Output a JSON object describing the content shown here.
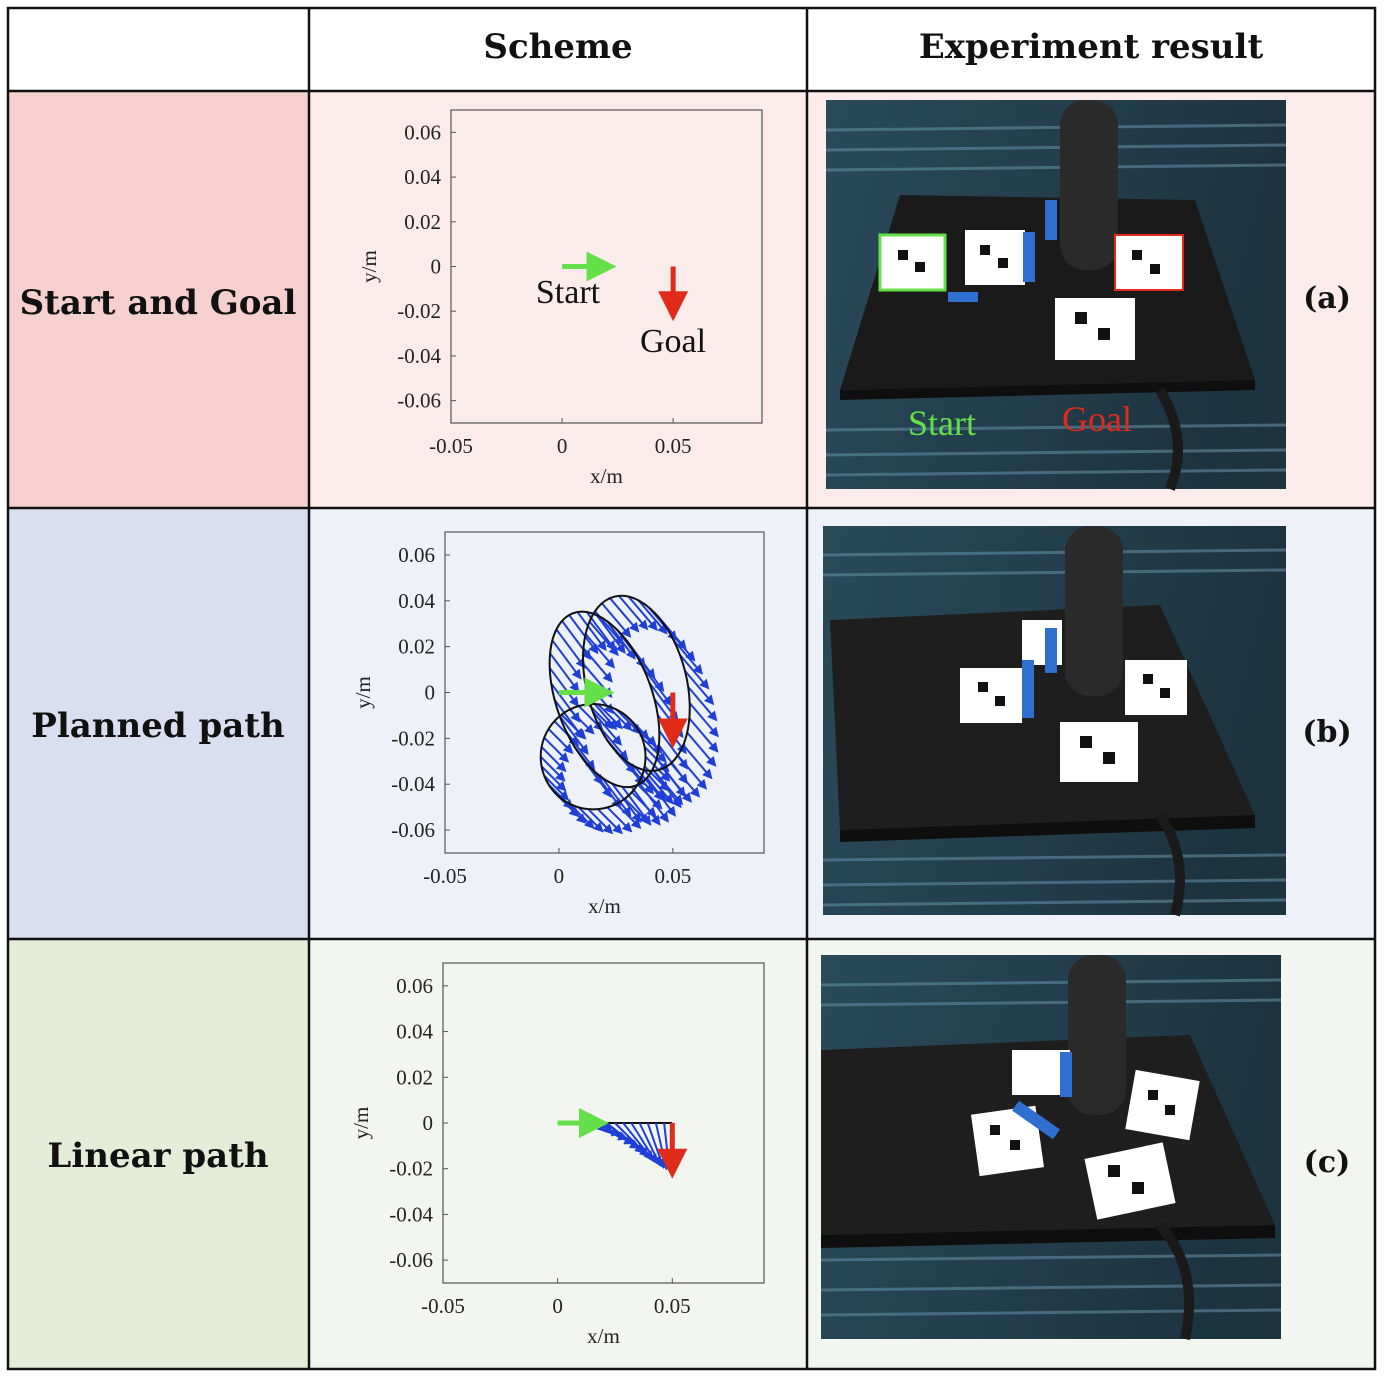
{
  "header": {
    "col_scheme": "Scheme",
    "col_result": "Experiment result"
  },
  "rows": [
    {
      "label": "Start and Goal",
      "panel": "(a)",
      "bg_label": "#f6cfcf",
      "bg_cell": "#fcebeb"
    },
    {
      "label": "Planned path",
      "panel": "(b)",
      "bg_label": "#d9dff0",
      "bg_cell": "#eef1f8"
    },
    {
      "label": "Linear path",
      "panel": "(c)",
      "bg_label": "#e5edd9",
      "bg_cell": "#f3f6f0"
    }
  ],
  "axes": {
    "xlabel": "x/m",
    "ylabel": "y/m",
    "xticks": [
      "-0.05",
      "0",
      "0.05"
    ],
    "yticks": [
      "0.06",
      "0.04",
      "0.02",
      "0",
      "-0.02",
      "-0.04",
      "-0.06"
    ]
  },
  "annotations": {
    "start": "Start",
    "goal": "Goal"
  },
  "photo_labels": {
    "start": "Start",
    "goal": "Goal"
  },
  "colors": {
    "start_arrow": "#66e04a",
    "goal_arrow": "#e02a1a",
    "path_vectors": "#1f3fd6",
    "path_outline": "#111111"
  },
  "chart_data": {
    "type": "scatter",
    "xlim": [
      -0.05,
      0.09
    ],
    "ylim": [
      -0.07,
      0.07
    ],
    "start_pose": {
      "x": 0.0,
      "y": 0.0,
      "direction": "+x"
    },
    "goal_pose": {
      "x": 0.05,
      "y": 0.0,
      "direction": "-y"
    }
  }
}
